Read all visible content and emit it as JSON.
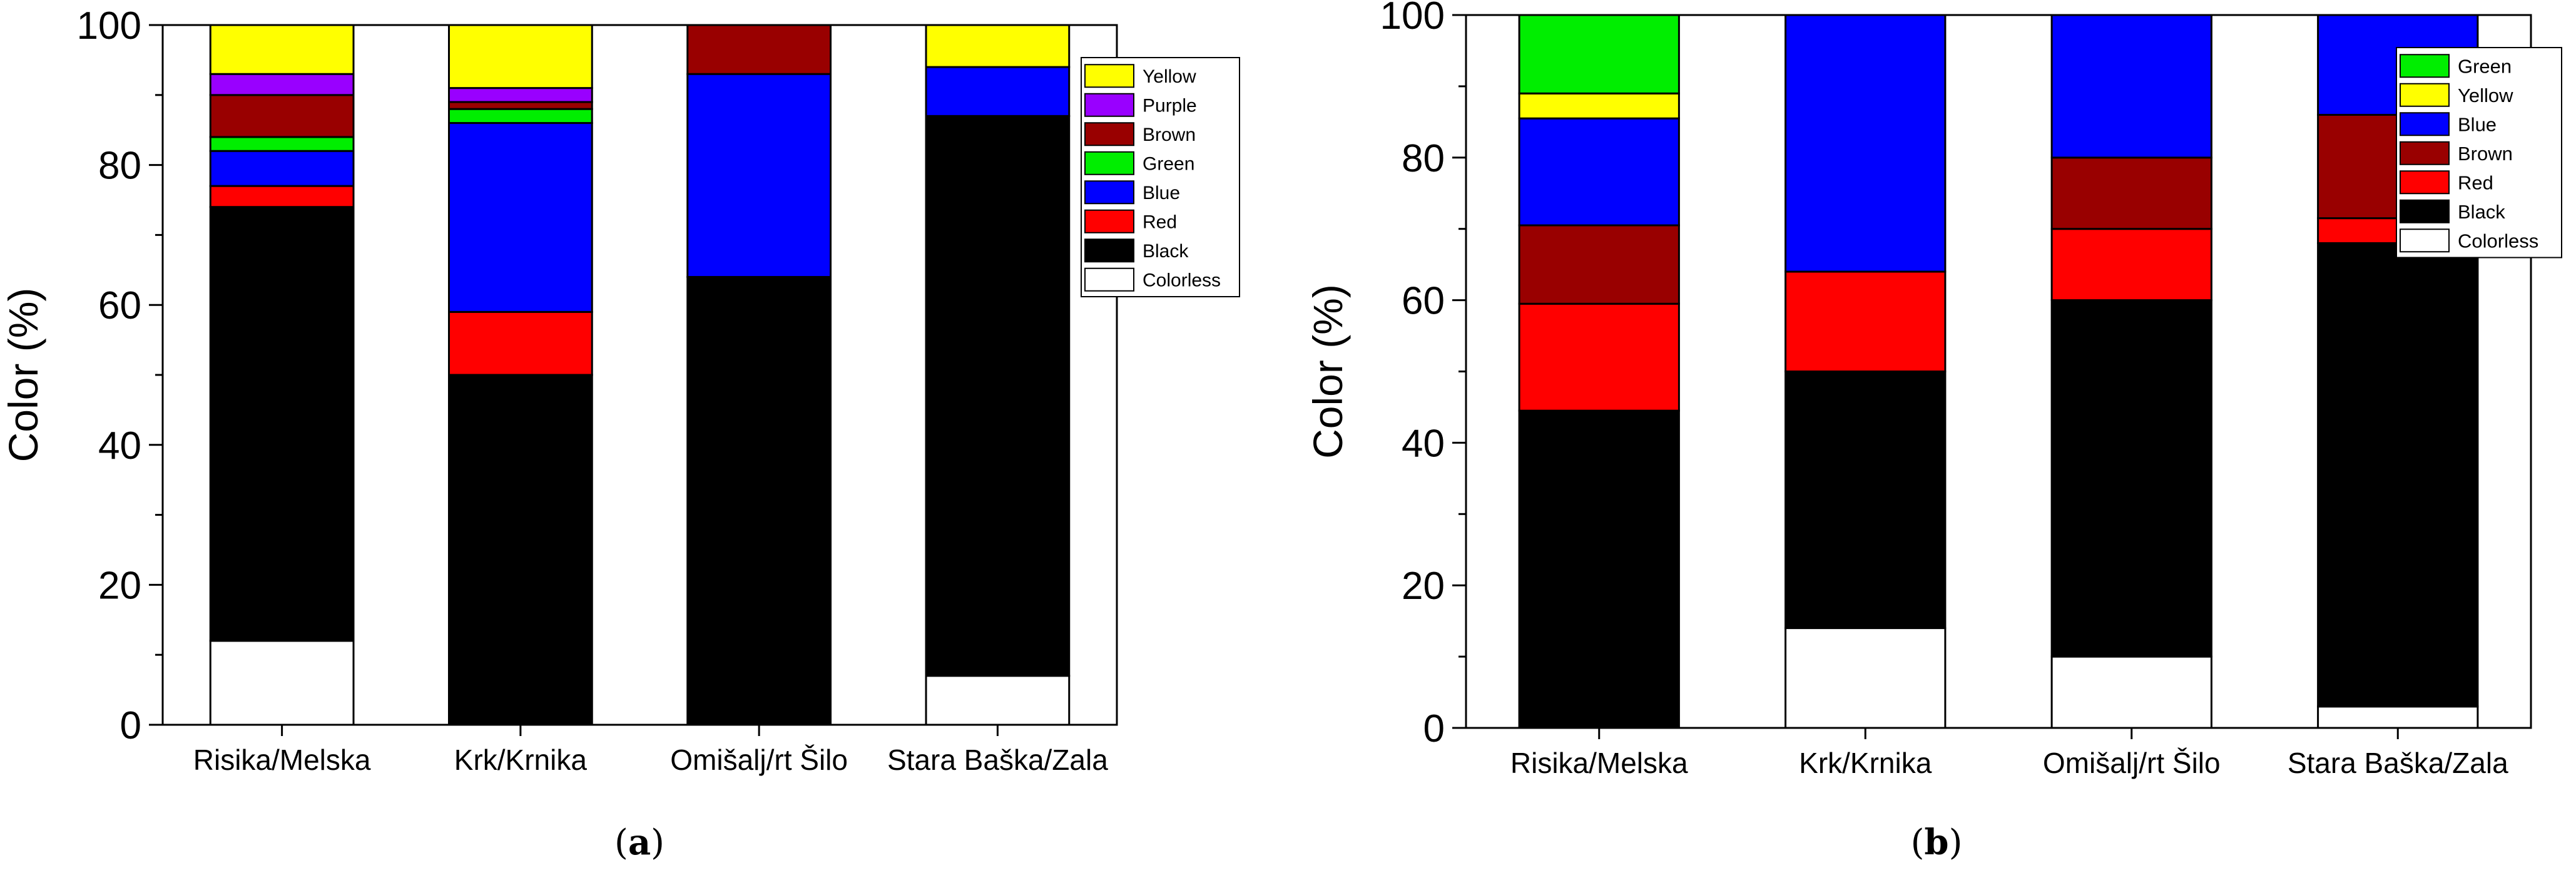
{
  "chart_data": [
    {
      "type": "bar",
      "stacked": true,
      "panel_label": "a",
      "categories": [
        "Risika/Melska",
        "Krk/Krnika",
        "Omišalj/rt Šilo",
        "Stara Baška/Zala"
      ],
      "ylabel": "Color (%)",
      "ylim": [
        0,
        100
      ],
      "yticks": [
        0,
        20,
        40,
        60,
        80,
        100
      ],
      "legend_position": "top-right",
      "legend_order": [
        "Yellow",
        "Purple",
        "Brown",
        "Green",
        "Blue",
        "Red",
        "Black",
        "Colorless"
      ],
      "series": [
        {
          "name": "Colorless",
          "color": "#ffffff",
          "values": [
            12,
            0,
            0,
            7
          ]
        },
        {
          "name": "Black",
          "color": "#000000",
          "values": [
            62,
            50,
            64,
            80
          ]
        },
        {
          "name": "Red",
          "color": "#ff0000",
          "values": [
            3,
            9,
            0,
            0
          ]
        },
        {
          "name": "Blue",
          "color": "#0000ff",
          "values": [
            5,
            27,
            29,
            7
          ]
        },
        {
          "name": "Green",
          "color": "#00ee00",
          "values": [
            2,
            2,
            0,
            0
          ]
        },
        {
          "name": "Brown",
          "color": "#990000",
          "values": [
            6,
            1,
            7,
            0
          ]
        },
        {
          "name": "Purple",
          "color": "#9900ff",
          "values": [
            3,
            2,
            0,
            0
          ]
        },
        {
          "name": "Yellow",
          "color": "#ffff00",
          "values": [
            7,
            9,
            0,
            6
          ]
        }
      ]
    },
    {
      "type": "bar",
      "stacked": true,
      "panel_label": "b",
      "categories": [
        "Risika/Melska",
        "Krk/Krnika",
        "Omišalj/rt Šilo",
        "Stara Baška/Zala"
      ],
      "ylabel": "Color (%)",
      "ylim": [
        0,
        100
      ],
      "yticks": [
        0,
        20,
        40,
        60,
        80,
        100
      ],
      "legend_position": "top-right",
      "legend_order": [
        "Green",
        "Yellow",
        "Blue",
        "Brown",
        "Red",
        "Black",
        "Colorless"
      ],
      "series": [
        {
          "name": "Colorless",
          "color": "#ffffff",
          "values": [
            0,
            14,
            10,
            3
          ]
        },
        {
          "name": "Black",
          "color": "#000000",
          "values": [
            44.5,
            36,
            50,
            65
          ]
        },
        {
          "name": "Red",
          "color": "#ff0000",
          "values": [
            15,
            14,
            10,
            3.5
          ]
        },
        {
          "name": "Brown",
          "color": "#990000",
          "values": [
            11,
            0,
            10,
            14.5
          ]
        },
        {
          "name": "Blue",
          "color": "#0000ff",
          "values": [
            15,
            36,
            20,
            14
          ]
        },
        {
          "name": "Yellow",
          "color": "#ffff00",
          "values": [
            3.5,
            0,
            0,
            0
          ]
        },
        {
          "name": "Green",
          "color": "#00ee00",
          "values": [
            11,
            0,
            0,
            0
          ]
        }
      ]
    }
  ]
}
